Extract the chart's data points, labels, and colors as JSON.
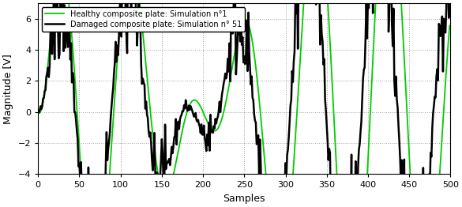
{
  "title": "",
  "xlabel": "Samples",
  "ylabel": "Magnitude [V]",
  "xlim": [
    0,
    500
  ],
  "ylim": [
    -4,
    7
  ],
  "yticks": [
    -4,
    -2,
    0,
    2,
    4,
    6
  ],
  "xticks": [
    0,
    50,
    100,
    150,
    200,
    250,
    300,
    350,
    400,
    450,
    500
  ],
  "xticklabels": [
    "0",
    "50",
    "100",
    "150",
    "200",
    "250",
    "300",
    "350",
    "400",
    "450",
    "500"
  ],
  "legend1": "Healthy composite plate: Simulation n°1",
  "legend2": "Damaged composite plate: Simulation n° 51",
  "color_healthy": "#00cc00",
  "color_damaged": "#000000",
  "lw_healthy": 1.3,
  "lw_damaged": 1.8,
  "n_samples": 500,
  "background": "#ffffff",
  "grid_color": "#888888",
  "grid_style": ":",
  "grid_lw": 0.7
}
